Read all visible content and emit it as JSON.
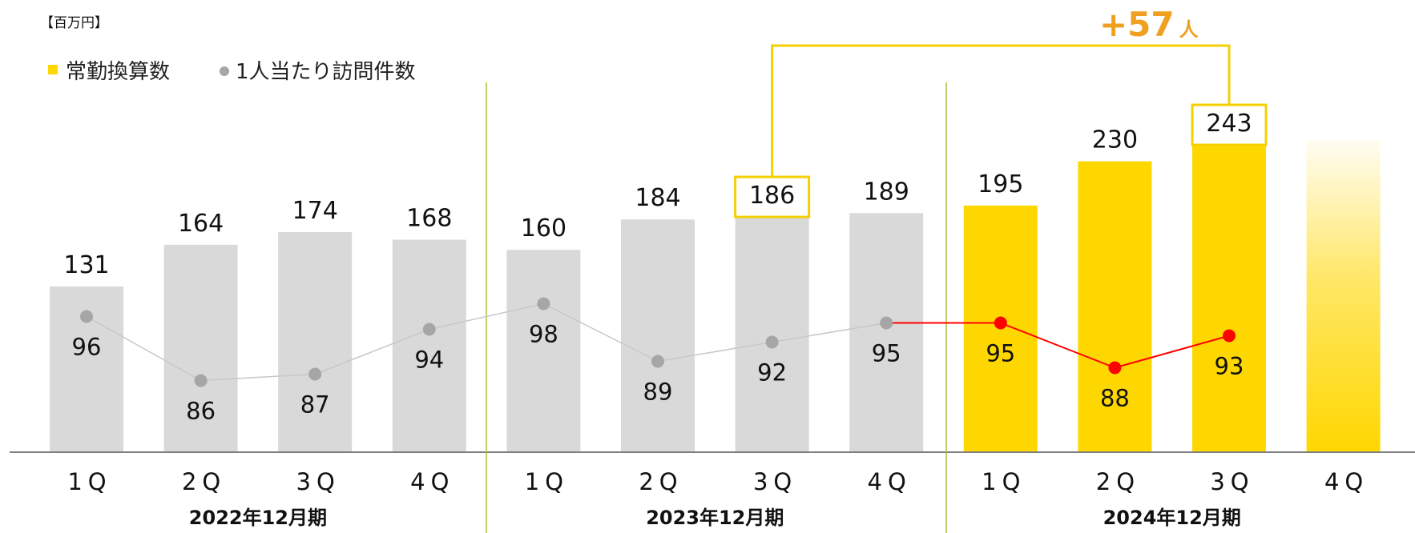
{
  "unit_label": "【百万円】",
  "legend": {
    "bar_series": "常勤換算数",
    "line_series": "1人当たり訪問件数"
  },
  "colors": {
    "bar_past": "#d9d9d9",
    "bar_current": "#ffd700",
    "line_past": "#a6a6a6",
    "line_current": "#ff0000",
    "accent_bracket": "#f5d000",
    "delta_text": "#f0a020",
    "axis": "#7f7f7f",
    "divider": "#a7c43a"
  },
  "annotation": {
    "delta_value": "+57",
    "delta_unit": "人",
    "from_index": 6,
    "to_index": 10
  },
  "chart_data": {
    "type": "bar",
    "categories": [
      "1Q",
      "2Q",
      "3Q",
      "4Q",
      "1Q",
      "2Q",
      "3Q",
      "4Q",
      "1Q",
      "2Q",
      "3Q",
      "4Q"
    ],
    "groups": [
      {
        "label": "2022年12月期",
        "start": 0,
        "end": 3
      },
      {
        "label": "2023年12月期",
        "start": 4,
        "end": 7
      },
      {
        "label": "2024年12月期",
        "start": 8,
        "end": 11
      }
    ],
    "series": [
      {
        "name": "常勤換算数",
        "type": "bar",
        "values": [
          131,
          164,
          174,
          168,
          160,
          184,
          186,
          189,
          195,
          230,
          243,
          null
        ]
      },
      {
        "name": "1人当たり訪問件数",
        "type": "line",
        "values": [
          96,
          86,
          87,
          94,
          98,
          89,
          92,
          95,
          95,
          88,
          93,
          null
        ]
      }
    ],
    "highlight_start_index": 8,
    "placeholder_index": 11,
    "boxed_indices": [
      6,
      10
    ],
    "bar_ylim": [
      0,
      250
    ],
    "line_ylim": [
      60,
      105
    ]
  }
}
